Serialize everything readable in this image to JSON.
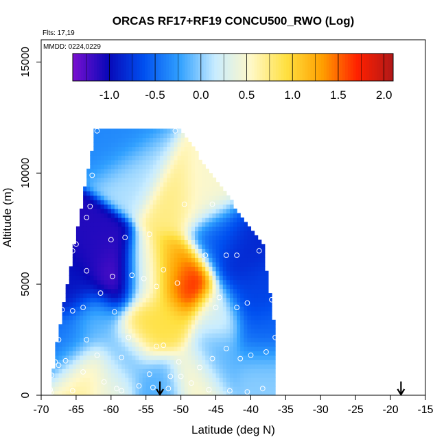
{
  "chart_data": {
    "type": "heatmap",
    "title": "ORCAS RF17+RF19 CONCU500_RWO (Log)",
    "flights_note": "Flts: 17,19",
    "date_note": "MMDD: 0224,0229",
    "xlabel": "Latitude (deg N)",
    "ylabel": "Altitude (m)",
    "xlim": [
      -70,
      -15
    ],
    "ylim": [
      0,
      16000
    ],
    "x_ticks": [
      -70,
      -65,
      -60,
      -55,
      -50,
      -45,
      -40,
      -35,
      -30,
      -25,
      -20,
      -15
    ],
    "x_tick_labels": [
      "-70",
      "-65",
      "-60",
      "-55",
      "-50",
      "-45",
      "-40",
      "-35",
      "-30",
      "-25",
      "-20",
      "-15"
    ],
    "y_ticks": [
      0,
      5000,
      10000,
      15000
    ],
    "y_tick_labels": [
      "0",
      "5000",
      "10000",
      "15000"
    ],
    "colorbar": {
      "range": [
        -1.4,
        2.1
      ],
      "ticks": [
        -1.0,
        -0.5,
        0.0,
        0.5,
        1.0,
        1.5,
        2.0
      ],
      "tick_labels": [
        "-1.0",
        "-0.5",
        "0.0",
        "0.5",
        "1.0",
        "1.5",
        "2.0"
      ],
      "colors": [
        "#7a10d0",
        "#0808b8",
        "#0050f0",
        "#30a0ff",
        "#c8ecff",
        "#fff8c8",
        "#ffe040",
        "#ffa000",
        "#ff2000",
        "#b01818"
      ]
    },
    "arrow_markers_lat": [
      -53,
      -18.5
    ],
    "grid": false,
    "legend": "colorbar at top",
    "field_hotspots": [
      {
        "lat": -49,
        "alt": 5100,
        "value": 1.9
      },
      {
        "lat": -51,
        "alt": 5600,
        "value": 1.1
      },
      {
        "lat": -55,
        "alt": 5300,
        "value": 0.4
      },
      {
        "lat": -55.5,
        "alt": 3000,
        "value": 0.95
      },
      {
        "lat": -52,
        "alt": 3400,
        "value": 0.9
      },
      {
        "lat": -51,
        "alt": 8800,
        "value": 0.75
      },
      {
        "lat": -47,
        "alt": 8900,
        "value": 0.5
      },
      {
        "lat": -59.5,
        "alt": 5200,
        "value": -1.35
      },
      {
        "lat": -62,
        "alt": 6300,
        "value": -1.1
      },
      {
        "lat": -65,
        "alt": 5000,
        "value": -0.95
      },
      {
        "lat": -42,
        "alt": 6200,
        "value": -0.85
      },
      {
        "lat": -40,
        "alt": 4600,
        "value": -0.7
      },
      {
        "lat": -58,
        "alt": 11500,
        "value": -0.35
      },
      {
        "lat": -56,
        "alt": 10100,
        "value": 0.1
      },
      {
        "lat": -45,
        "alt": 7000,
        "value": -0.55
      },
      {
        "lat": -45,
        "alt": 3600,
        "value": 0.25
      },
      {
        "lat": -62,
        "alt": 3500,
        "value": -0.1
      },
      {
        "lat": -64,
        "alt": 1000,
        "value": 0.7
      },
      {
        "lat": -60,
        "alt": 800,
        "value": 0.4
      },
      {
        "lat": -48,
        "alt": 850,
        "value": 0.55
      },
      {
        "lat": -58,
        "alt": 1800,
        "value": -0.2
      },
      {
        "lat": -45,
        "alt": 1800,
        "value": -0.15
      },
      {
        "lat": -38,
        "alt": 2700,
        "value": -0.55
      },
      {
        "lat": -53,
        "alt": 400,
        "value": -0.15
      },
      {
        "lat": -66,
        "alt": 2200,
        "value": -0.45
      },
      {
        "lat": -38,
        "alt": 1200,
        "value": 0.0
      }
    ],
    "observation_points": [
      [
        -62,
        11900
      ],
      [
        -50.8,
        11900
      ],
      [
        -62.7,
        9900
      ],
      [
        -63,
        8500
      ],
      [
        -49.5,
        8600
      ],
      [
        -45.5,
        8600
      ],
      [
        -63.5,
        8000
      ],
      [
        -66,
        7600
      ],
      [
        -58,
        7100
      ],
      [
        -60,
        7000
      ],
      [
        -54.5,
        7250
      ],
      [
        -65,
        6800
      ],
      [
        -65.5,
        6500
      ],
      [
        -38.8,
        6500
      ],
      [
        -43.5,
        6300
      ],
      [
        -42,
        6300
      ],
      [
        -46.5,
        6300
      ],
      [
        -66.8,
        5600
      ],
      [
        -63.5,
        5600
      ],
      [
        -57,
        5400
      ],
      [
        -59.8,
        5350
      ],
      [
        -55.3,
        5250
      ],
      [
        -50.5,
        5050
      ],
      [
        -52.5,
        5650
      ],
      [
        -53.5,
        4900
      ],
      [
        -61.5,
        4600
      ],
      [
        -44.5,
        4400
      ],
      [
        -40.5,
        4150
      ],
      [
        -37,
        4300
      ],
      [
        -64,
        3950
      ],
      [
        -45,
        3950
      ],
      [
        -42,
        3950
      ],
      [
        -67,
        3850
      ],
      [
        -65.5,
        3800
      ],
      [
        -59.5,
        3750
      ],
      [
        -57.5,
        2600
      ],
      [
        -63.5,
        2500
      ],
      [
        -67.5,
        2500
      ],
      [
        -36.5,
        2600
      ],
      [
        -53.5,
        2200
      ],
      [
        -52.5,
        2250
      ],
      [
        -43.5,
        2100
      ],
      [
        -37.8,
        1950
      ],
      [
        -62,
        1800
      ],
      [
        -58.5,
        1700
      ],
      [
        -45.5,
        1650
      ],
      [
        -41.5,
        1650
      ],
      [
        -40,
        1800
      ],
      [
        -68,
        1500
      ],
      [
        -66.5,
        1550
      ],
      [
        -67.5,
        1350
      ],
      [
        -50.3,
        1500
      ],
      [
        -47.3,
        1250
      ],
      [
        -64,
        1050
      ],
      [
        -54.5,
        950
      ],
      [
        -51.5,
        850
      ],
      [
        -50,
        850
      ],
      [
        -68.5,
        900
      ],
      [
        -59.2,
        300
      ],
      [
        -58.5,
        200
      ],
      [
        -54,
        350
      ],
      [
        -51.8,
        300
      ],
      [
        -46,
        250
      ],
      [
        -43,
        200
      ],
      [
        -38.3,
        300
      ],
      [
        -40.5,
        150
      ],
      [
        -68.7,
        250
      ],
      [
        -68.6,
        120
      ],
      [
        -61,
        600
      ],
      [
        -48.5,
        550
      ],
      [
        -65.5,
        200
      ],
      [
        -56,
        420
      ]
    ]
  }
}
